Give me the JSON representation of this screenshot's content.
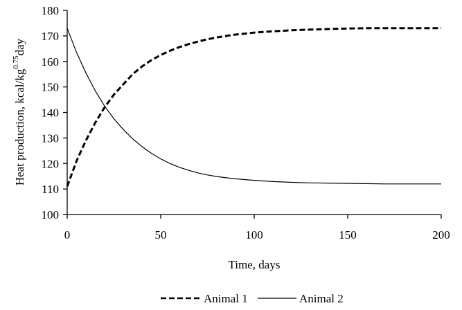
{
  "chart_data": {
    "type": "line",
    "xlabel": "Time, days",
    "ylabel_parts": {
      "main": "Heat production, kcal/kg",
      "superscript": "0.75",
      "suffix": "day"
    },
    "xlim": [
      0,
      200
    ],
    "ylim": [
      100,
      180
    ],
    "x_ticks": [
      0,
      50,
      100,
      150,
      200
    ],
    "y_ticks": [
      100,
      110,
      120,
      130,
      140,
      150,
      160,
      170,
      180
    ],
    "grid": false,
    "legend_position": "bottom",
    "x": [
      0,
      5,
      10,
      15,
      20,
      25,
      30,
      35,
      40,
      45,
      50,
      55,
      60,
      65,
      70,
      75,
      80,
      85,
      90,
      95,
      100,
      110,
      120,
      130,
      140,
      150,
      160,
      170,
      180,
      190,
      200
    ],
    "series": [
      {
        "name": "Animal 1",
        "style": "dashed",
        "values": [
          111,
          121,
          129,
          136,
          142,
          147,
          151,
          155,
          158,
          160.5,
          162.5,
          164.2,
          165.6,
          166.8,
          167.8,
          168.7,
          169.4,
          170,
          170.5,
          170.9,
          171.3,
          171.8,
          172.2,
          172.5,
          172.7,
          172.9,
          173,
          173,
          173,
          173,
          173
        ]
      },
      {
        "name": "Animal 2",
        "style": "solid",
        "values": [
          173,
          163.5,
          155.5,
          148.5,
          142.5,
          137.5,
          133.3,
          129.7,
          126.6,
          124,
          121.8,
          120,
          118.5,
          117.3,
          116.3,
          115.5,
          114.9,
          114.4,
          114,
          113.7,
          113.4,
          112.9,
          112.6,
          112.4,
          112.3,
          112.2,
          112.1,
          112,
          112,
          112,
          112
        ]
      }
    ]
  },
  "colors": {
    "axis": "#000000",
    "series": "#000000"
  }
}
